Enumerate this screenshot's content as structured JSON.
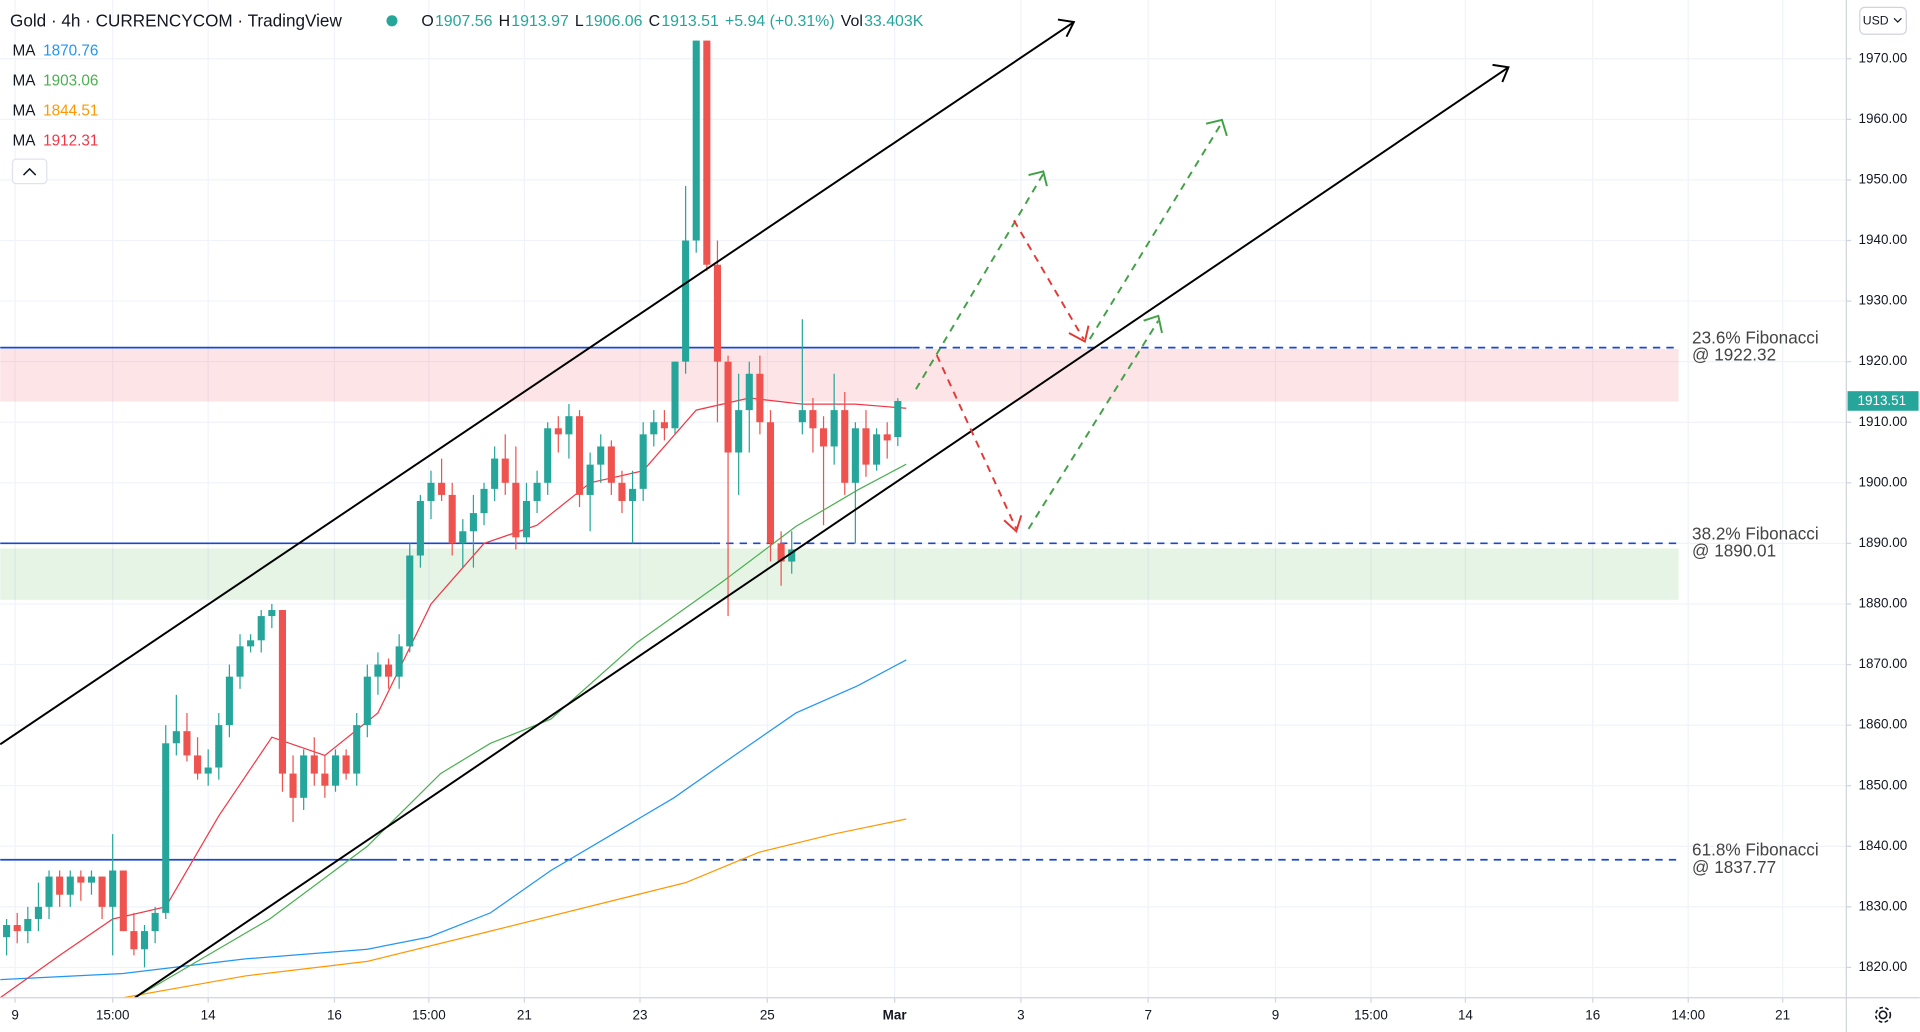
{
  "chart_data": {
    "type": "candlestick",
    "title": "Gold · 4h · CURRENCYCOM · TradingView",
    "ohlc_legend": [
      {
        "key": "O",
        "value": 1907.56
      },
      {
        "key": "H",
        "value": 1913.97
      },
      {
        "key": "L",
        "value": 1906.06
      },
      {
        "key": "C",
        "value": 1913.51
      }
    ],
    "change": "+5.94 (+0.31%)",
    "volume_key": "Vol",
    "volume": "33.403K",
    "currency": "USD",
    "up_color": "#26a69a",
    "down_color": "#ef5350",
    "grid": true,
    "xlim": [
      -0.6,
      173.4
    ],
    "ylim": [
      1815,
      1979.7
    ],
    "yticks": [
      {
        "value": 1820,
        "label": "1820.00"
      },
      {
        "value": 1830,
        "label": "1830.00"
      },
      {
        "value": 1840,
        "label": "1840.00"
      },
      {
        "value": 1850,
        "label": "1850.00"
      },
      {
        "value": 1860,
        "label": "1860.00"
      },
      {
        "value": 1870,
        "label": "1870.00"
      },
      {
        "value": 1880,
        "label": "1880.00"
      },
      {
        "value": 1890,
        "label": "1890.00"
      },
      {
        "value": 1900,
        "label": "1900.00"
      },
      {
        "value": 1910,
        "label": "1910.00"
      },
      {
        "value": 1920,
        "label": "1920.00"
      },
      {
        "value": 1930,
        "label": "1930.00"
      },
      {
        "value": 1940,
        "label": "1940.00"
      },
      {
        "value": 1950,
        "label": "1950.00"
      },
      {
        "value": 1960,
        "label": "1960.00"
      },
      {
        "value": 1970,
        "label": "1970.00"
      }
    ],
    "xticks": [
      {
        "value": 0.8,
        "label": "9"
      },
      {
        "value": 10,
        "label": "15:00"
      },
      {
        "value": 19,
        "label": "14"
      },
      {
        "value": 30.9,
        "label": "16"
      },
      {
        "value": 39.8,
        "label": "15:00"
      },
      {
        "value": 48.8,
        "label": "21"
      },
      {
        "value": 59.7,
        "label": "23"
      },
      {
        "value": 71.7,
        "label": "25"
      },
      {
        "value": 83.7,
        "label": "Mar"
      },
      {
        "value": 95.6,
        "label": "3"
      },
      {
        "value": 107.6,
        "label": "7"
      },
      {
        "value": 119.6,
        "label": "9"
      },
      {
        "value": 128.6,
        "label": "15:00"
      },
      {
        "value": 137.5,
        "label": "14"
      },
      {
        "value": 149.5,
        "label": "16"
      },
      {
        "value": 158.5,
        "label": "14:00"
      },
      {
        "value": 167.4,
        "label": "21"
      }
    ],
    "candles": [
      [
        1825,
        1828,
        1822,
        1827
      ],
      [
        1827,
        1829,
        1824,
        1826
      ],
      [
        1826,
        1830,
        1824,
        1828
      ],
      [
        1828,
        1834,
        1826,
        1830
      ],
      [
        1830,
        1836,
        1828,
        1835
      ],
      [
        1835,
        1836,
        1830,
        1832
      ],
      [
        1832,
        1836,
        1830,
        1835
      ],
      [
        1835,
        1836,
        1831,
        1834
      ],
      [
        1834,
        1836,
        1832,
        1835
      ],
      [
        1835,
        1835,
        1828,
        1830
      ],
      [
        1830,
        1842,
        1822,
        1836
      ],
      [
        1836,
        1836,
        1826,
        1826
      ],
      [
        1826,
        1829,
        1822,
        1823
      ],
      [
        1823,
        1827,
        1820,
        1826
      ],
      [
        1826,
        1830,
        1824,
        1829
      ],
      [
        1829,
        1860,
        1828,
        1857
      ],
      [
        1857,
        1865,
        1855,
        1859
      ],
      [
        1859,
        1862,
        1854,
        1855
      ],
      [
        1855,
        1858,
        1851,
        1852
      ],
      [
        1852,
        1856,
        1850,
        1853
      ],
      [
        1853,
        1862,
        1851,
        1860
      ],
      [
        1860,
        1870,
        1858,
        1868
      ],
      [
        1868,
        1875,
        1866,
        1873
      ],
      [
        1873,
        1875,
        1872,
        1874
      ],
      [
        1874,
        1879,
        1872,
        1878
      ],
      [
        1878,
        1880,
        1876,
        1879
      ],
      [
        1879,
        1879,
        1849,
        1852
      ],
      [
        1852,
        1855,
        1844,
        1848
      ],
      [
        1848,
        1856,
        1846,
        1855
      ],
      [
        1855,
        1858,
        1850,
        1852
      ],
      [
        1852,
        1855,
        1848,
        1850
      ],
      [
        1850,
        1856,
        1849,
        1855
      ],
      [
        1855,
        1856,
        1851,
        1852
      ],
      [
        1852,
        1862,
        1850,
        1860
      ],
      [
        1860,
        1870,
        1858,
        1868
      ],
      [
        1868,
        1872,
        1865,
        1870
      ],
      [
        1870,
        1871,
        1866,
        1868
      ],
      [
        1868,
        1875,
        1866,
        1873
      ],
      [
        1873,
        1890,
        1872,
        1888
      ],
      [
        1888,
        1898,
        1886,
        1897
      ],
      [
        1897,
        1902,
        1894,
        1900
      ],
      [
        1900,
        1904,
        1897,
        1898
      ],
      [
        1898,
        1900,
        1888,
        1890
      ],
      [
        1890,
        1894,
        1886,
        1892
      ],
      [
        1892,
        1898,
        1886,
        1895
      ],
      [
        1895,
        1900,
        1893,
        1899
      ],
      [
        1899,
        1906,
        1897,
        1904
      ],
      [
        1904,
        1908,
        1898,
        1900
      ],
      [
        1900,
        1906,
        1889,
        1891
      ],
      [
        1891,
        1900,
        1890,
        1897
      ],
      [
        1897,
        1902,
        1895,
        1900
      ],
      [
        1900,
        1910,
        1898,
        1909
      ],
      [
        1909,
        1911,
        1905,
        1908
      ],
      [
        1908,
        1913,
        1904,
        1911
      ],
      [
        1911,
        1912,
        1896,
        1898
      ],
      [
        1898,
        1905,
        1892,
        1903
      ],
      [
        1903,
        1908,
        1900,
        1906
      ],
      [
        1906,
        1907,
        1898,
        1900
      ],
      [
        1900,
        1902,
        1895,
        1897
      ],
      [
        1897,
        1902,
        1890,
        1899
      ],
      [
        1899,
        1910,
        1897,
        1908
      ],
      [
        1908,
        1912,
        1906,
        1910
      ],
      [
        1910,
        1912,
        1907,
        1909
      ],
      [
        1909,
        1920,
        1908,
        1920
      ],
      [
        1920,
        1949,
        1918,
        1940
      ],
      [
        1940,
        1973,
        1938,
        1973
      ],
      [
        1973,
        1973,
        1935,
        1936
      ],
      [
        1936,
        1940,
        1910,
        1920
      ],
      [
        1920,
        1921,
        1878,
        1905
      ],
      [
        1905,
        1918,
        1898,
        1912
      ],
      [
        1912,
        1920,
        1905,
        1918
      ],
      [
        1918,
        1921,
        1908,
        1910
      ],
      [
        1910,
        1912,
        1887,
        1890
      ],
      [
        1890,
        1892,
        1883,
        1887
      ],
      [
        1887,
        1892,
        1885,
        1889
      ],
      [
        1910,
        1927,
        1908,
        1912
      ],
      [
        1912,
        1914,
        1905,
        1909
      ],
      [
        1909,
        1911,
        1893,
        1906
      ],
      [
        1906,
        1918,
        1903,
        1912
      ],
      [
        1912,
        1915,
        1898,
        1900
      ],
      [
        1900,
        1910,
        1890,
        1909
      ],
      [
        1909,
        1912,
        1901,
        1903
      ],
      [
        1903,
        1909,
        1902,
        1908
      ],
      [
        1908,
        1910,
        1904,
        1907
      ],
      [
        1907.56,
        1913.97,
        1906.06,
        1913.51
      ]
    ],
    "series": [
      {
        "name": "MA",
        "color": "#2196f3",
        "x": [
          -0.6,
          11,
          22.5,
          34,
          39.8,
          45.6,
          51.3,
          57.1,
          62.9,
          68.6,
          74.4,
          80.2,
          84.8
        ],
        "values": [
          1818,
          1819,
          1821.4,
          1823,
          1825,
          1829,
          1836,
          1842,
          1848,
          1855,
          1862,
          1866.5,
          1870.76
        ]
      },
      {
        "name": "MA",
        "color": "#4caf50",
        "x": [
          12.1,
          24.8,
          34,
          40.9,
          45.6,
          51.3,
          59.4,
          67.5,
          74.4,
          80.2,
          84.8
        ],
        "values": [
          1815,
          1828,
          1840,
          1852,
          1857,
          1861,
          1873.6,
          1883.7,
          1892.8,
          1898.8,
          1903.06
        ]
      },
      {
        "name": "MA",
        "color": "#ff9800",
        "x": [
          11,
          22.5,
          34,
          45.6,
          57.1,
          64,
          70.9,
          77.9,
          84.8
        ],
        "values": [
          1815,
          1818.6,
          1821,
          1826,
          1831,
          1834,
          1839,
          1842,
          1844.51
        ]
      },
      {
        "name": "MA",
        "color": "#f23645",
        "x": [
          -0.6,
          5,
          10,
          15,
          20,
          25,
          30,
          35,
          40,
          45,
          50,
          55,
          60,
          65,
          70,
          75,
          80,
          84.8
        ],
        "values": [
          1815,
          1822,
          1828,
          1830,
          1845,
          1858,
          1855,
          1862,
          1880,
          1890,
          1893,
          1900,
          1902,
          1912,
          1914,
          1913,
          1913,
          1912.31
        ]
      }
    ],
    "levels": [
      {
        "label": "23.6% Fibonacci",
        "value": 1922.32,
        "value_label": "@ 1922.32",
        "color": "#1848cc"
      },
      {
        "label": "38.2% Fibonacci",
        "value": 1890.01,
        "value_label": "@ 1890.01",
        "color": "#1848cc"
      },
      {
        "label": "61.8% Fibonacci",
        "value": 1837.77,
        "value_label": "@ 1837.77",
        "color": "#1848cc"
      }
    ]
  }
}
